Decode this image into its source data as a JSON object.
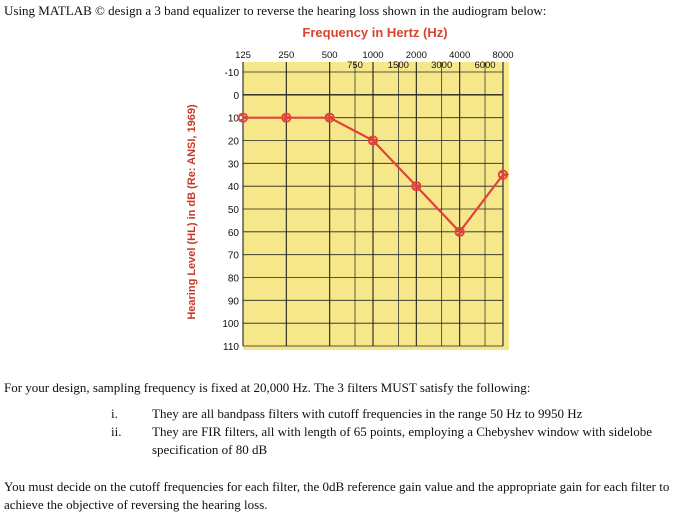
{
  "question": {
    "intro": "Using MATLAB © design a 3 band equalizer to reverse the hearing loss shown in the audiogram below:",
    "sampling": "For your design, sampling frequency is fixed at 20,000 Hz. The 3 filters MUST satisfy the following:",
    "items": [
      {
        "num": "i.",
        "text": "They are all bandpass filters with cutoff frequencies in the range 50 Hz to 9950 Hz"
      },
      {
        "num": "ii.",
        "text": "They are FIR filters, all with length of 65 points, employing a Chebyshev window with sidelobe specification of 80 dB"
      }
    ],
    "closing": "You must decide on the cutoff frequencies for each filter, the 0dB reference gain value and the appropriate gain for each filter to achieve the objective of reversing the hearing loss."
  },
  "chart_data": {
    "type": "line",
    "title": "Frequency in Hertz (Hz)",
    "ylabel": "Hearing Level (HL) in dB (Re: ANSI, 1969)",
    "x_ticks_top": [
      "125",
      "250",
      "500",
      "1000",
      "2000",
      "4000",
      "8000"
    ],
    "x_ticks_bottom": [
      "750",
      "1500",
      "3000",
      "6000"
    ],
    "y_ticks": [
      "-10",
      "0",
      "10",
      "20",
      "30",
      "40",
      "50",
      "60",
      "70",
      "80",
      "90",
      "100",
      "110"
    ],
    "ylim": [
      -10,
      110
    ],
    "y_reversed": true,
    "x_scale": "log",
    "grid": true,
    "series": [
      {
        "x": [
          125,
          250,
          500,
          1000,
          2000,
          4000,
          8000
        ],
        "y": [
          10,
          10,
          10,
          20,
          40,
          60,
          35
        ]
      }
    ],
    "colors": {
      "background": "#f6e88a",
      "line": "#e3403a",
      "grid": "#222222",
      "title": "#d9442f",
      "ylabel": "#c53a2a"
    }
  }
}
